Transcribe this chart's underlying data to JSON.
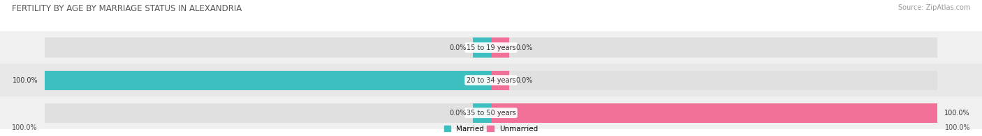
{
  "title": "FERTILITY BY AGE BY MARRIAGE STATUS IN ALEXANDRIA",
  "source": "Source: ZipAtlas.com",
  "rows": [
    {
      "label": "15 to 19 years",
      "married": 0.0,
      "unmarried": 0.0
    },
    {
      "label": "20 to 34 years",
      "married": 100.0,
      "unmarried": 0.0
    },
    {
      "label": "35 to 50 years",
      "married": 0.0,
      "unmarried": 100.0
    }
  ],
  "married_color": "#3dbfbf",
  "unmarried_color": "#f07098",
  "bar_bg_color": "#e0e0e0",
  "row_bg_even": "#f0f0f0",
  "row_bg_odd": "#e8e8e8",
  "stub_size": 4.0,
  "bar_height": 0.6,
  "title_fontsize": 8.5,
  "label_fontsize": 7.0,
  "source_fontsize": 7.0,
  "value_fontsize": 7.0,
  "legend_fontsize": 7.5,
  "x_left_label": "100.0%",
  "x_right_label": "100.0%",
  "background_color": "#ffffff",
  "text_color": "#555555"
}
